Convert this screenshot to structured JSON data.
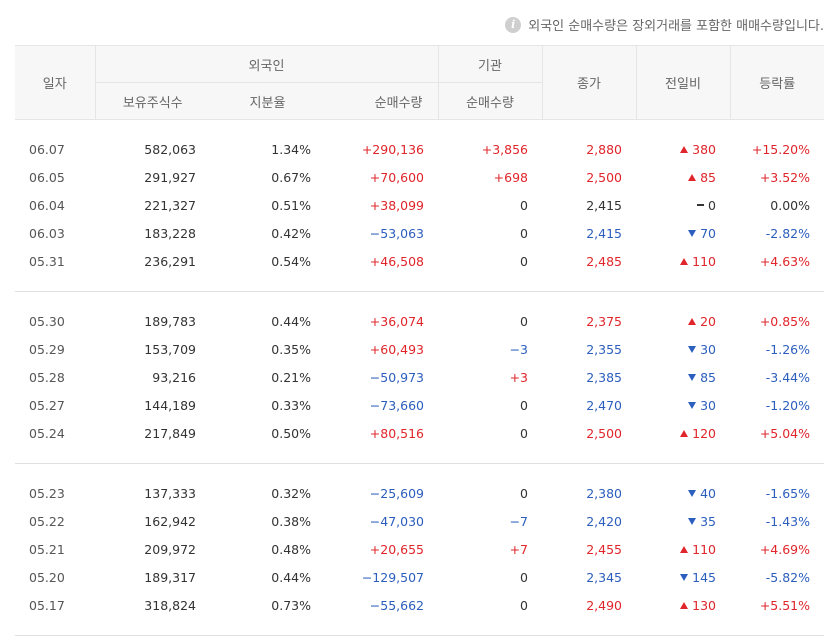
{
  "notice": {
    "icon": "info-icon",
    "text": "외국인 순매수량은 장외거래를 포함한 매매수량입니다."
  },
  "headers": {
    "date": "일자",
    "foreign_group": "외국인",
    "foreign_holdings": "보유주식수",
    "foreign_ratio": "지분율",
    "foreign_net": "순매수량",
    "inst_group": "기관",
    "inst_net": "순매수량",
    "close": "종가",
    "change": "전일비",
    "rate": "등락률"
  },
  "colors": {
    "up": "#e0252b",
    "down": "#2c5ebd"
  },
  "groups": [
    [
      {
        "date": "06.07",
        "holdings": "582,063",
        "ratio": "1.34%",
        "foreign_net": "+290,136",
        "foreign_dir": "up",
        "inst_net": "+3,856",
        "inst_dir": "up",
        "close": "2,880",
        "close_dir": "up",
        "change": "380",
        "change_dir": "up",
        "rate": "+15.20%",
        "rate_dir": "up"
      },
      {
        "date": "06.05",
        "holdings": "291,927",
        "ratio": "0.67%",
        "foreign_net": "+70,600",
        "foreign_dir": "up",
        "inst_net": "+698",
        "inst_dir": "up",
        "close": "2,500",
        "close_dir": "up",
        "change": "85",
        "change_dir": "up",
        "rate": "+3.52%",
        "rate_dir": "up"
      },
      {
        "date": "06.04",
        "holdings": "221,327",
        "ratio": "0.51%",
        "foreign_net": "+38,099",
        "foreign_dir": "up",
        "inst_net": "0",
        "inst_dir": "flat",
        "close": "2,415",
        "close_dir": "flat",
        "change": "0",
        "change_dir": "flat",
        "rate": "0.00%",
        "rate_dir": "flat"
      },
      {
        "date": "06.03",
        "holdings": "183,228",
        "ratio": "0.42%",
        "foreign_net": "−53,063",
        "foreign_dir": "down",
        "inst_net": "0",
        "inst_dir": "flat",
        "close": "2,415",
        "close_dir": "down",
        "change": "70",
        "change_dir": "down",
        "rate": "-2.82%",
        "rate_dir": "down"
      },
      {
        "date": "05.31",
        "holdings": "236,291",
        "ratio": "0.54%",
        "foreign_net": "+46,508",
        "foreign_dir": "up",
        "inst_net": "0",
        "inst_dir": "flat",
        "close": "2,485",
        "close_dir": "up",
        "change": "110",
        "change_dir": "up",
        "rate": "+4.63%",
        "rate_dir": "up"
      }
    ],
    [
      {
        "date": "05.30",
        "holdings": "189,783",
        "ratio": "0.44%",
        "foreign_net": "+36,074",
        "foreign_dir": "up",
        "inst_net": "0",
        "inst_dir": "flat",
        "close": "2,375",
        "close_dir": "up",
        "change": "20",
        "change_dir": "up",
        "rate": "+0.85%",
        "rate_dir": "up"
      },
      {
        "date": "05.29",
        "holdings": "153,709",
        "ratio": "0.35%",
        "foreign_net": "+60,493",
        "foreign_dir": "up",
        "inst_net": "−3",
        "inst_dir": "down",
        "close": "2,355",
        "close_dir": "down",
        "change": "30",
        "change_dir": "down",
        "rate": "-1.26%",
        "rate_dir": "down"
      },
      {
        "date": "05.28",
        "holdings": "93,216",
        "ratio": "0.21%",
        "foreign_net": "−50,973",
        "foreign_dir": "down",
        "inst_net": "+3",
        "inst_dir": "up",
        "close": "2,385",
        "close_dir": "down",
        "change": "85",
        "change_dir": "down",
        "rate": "-3.44%",
        "rate_dir": "down"
      },
      {
        "date": "05.27",
        "holdings": "144,189",
        "ratio": "0.33%",
        "foreign_net": "−73,660",
        "foreign_dir": "down",
        "inst_net": "0",
        "inst_dir": "flat",
        "close": "2,470",
        "close_dir": "down",
        "change": "30",
        "change_dir": "down",
        "rate": "-1.20%",
        "rate_dir": "down"
      },
      {
        "date": "05.24",
        "holdings": "217,849",
        "ratio": "0.50%",
        "foreign_net": "+80,516",
        "foreign_dir": "up",
        "inst_net": "0",
        "inst_dir": "flat",
        "close": "2,500",
        "close_dir": "up",
        "change": "120",
        "change_dir": "up",
        "rate": "+5.04%",
        "rate_dir": "up"
      }
    ],
    [
      {
        "date": "05.23",
        "holdings": "137,333",
        "ratio": "0.32%",
        "foreign_net": "−25,609",
        "foreign_dir": "down",
        "inst_net": "0",
        "inst_dir": "flat",
        "close": "2,380",
        "close_dir": "down",
        "change": "40",
        "change_dir": "down",
        "rate": "-1.65%",
        "rate_dir": "down"
      },
      {
        "date": "05.22",
        "holdings": "162,942",
        "ratio": "0.38%",
        "foreign_net": "−47,030",
        "foreign_dir": "down",
        "inst_net": "−7",
        "inst_dir": "down",
        "close": "2,420",
        "close_dir": "down",
        "change": "35",
        "change_dir": "down",
        "rate": "-1.43%",
        "rate_dir": "down"
      },
      {
        "date": "05.21",
        "holdings": "209,972",
        "ratio": "0.48%",
        "foreign_net": "+20,655",
        "foreign_dir": "up",
        "inst_net": "+7",
        "inst_dir": "up",
        "close": "2,455",
        "close_dir": "up",
        "change": "110",
        "change_dir": "up",
        "rate": "+4.69%",
        "rate_dir": "up"
      },
      {
        "date": "05.20",
        "holdings": "189,317",
        "ratio": "0.44%",
        "foreign_net": "−129,507",
        "foreign_dir": "down",
        "inst_net": "0",
        "inst_dir": "flat",
        "close": "2,345",
        "close_dir": "down",
        "change": "145",
        "change_dir": "down",
        "rate": "-5.82%",
        "rate_dir": "down"
      },
      {
        "date": "05.17",
        "holdings": "318,824",
        "ratio": "0.73%",
        "foreign_net": "−55,662",
        "foreign_dir": "down",
        "inst_net": "0",
        "inst_dir": "flat",
        "close": "2,490",
        "close_dir": "up",
        "change": "130",
        "change_dir": "up",
        "rate": "+5.51%",
        "rate_dir": "up"
      }
    ]
  ]
}
